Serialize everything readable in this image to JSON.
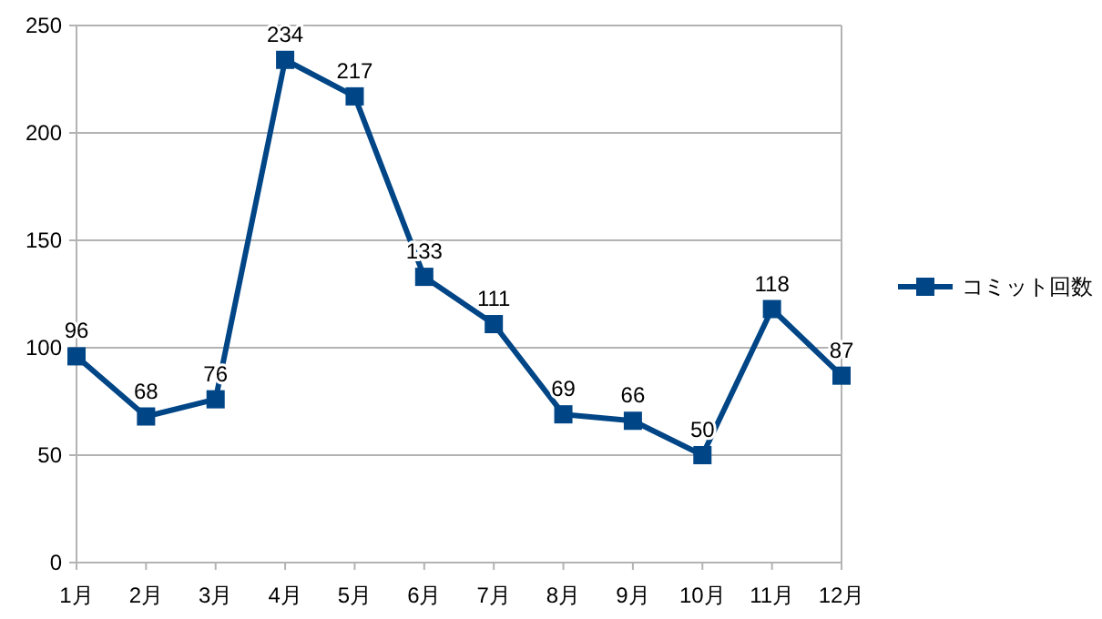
{
  "chart_data": {
    "type": "line",
    "categories": [
      "1月",
      "2月",
      "3月",
      "4月",
      "5月",
      "6月",
      "7月",
      "8月",
      "9月",
      "10月",
      "11月",
      "12月"
    ],
    "series": [
      {
        "name": "コミット回数",
        "color": "#004586",
        "values": [
          96,
          68,
          76,
          234,
          217,
          133,
          111,
          69,
          66,
          50,
          118,
          87
        ]
      }
    ],
    "ylim": [
      0,
      250
    ],
    "yticks": [
      0,
      50,
      100,
      150,
      200,
      250
    ],
    "grid": "y",
    "legend": "right",
    "marker": "square",
    "line_style": "solid",
    "data_labels": true
  }
}
